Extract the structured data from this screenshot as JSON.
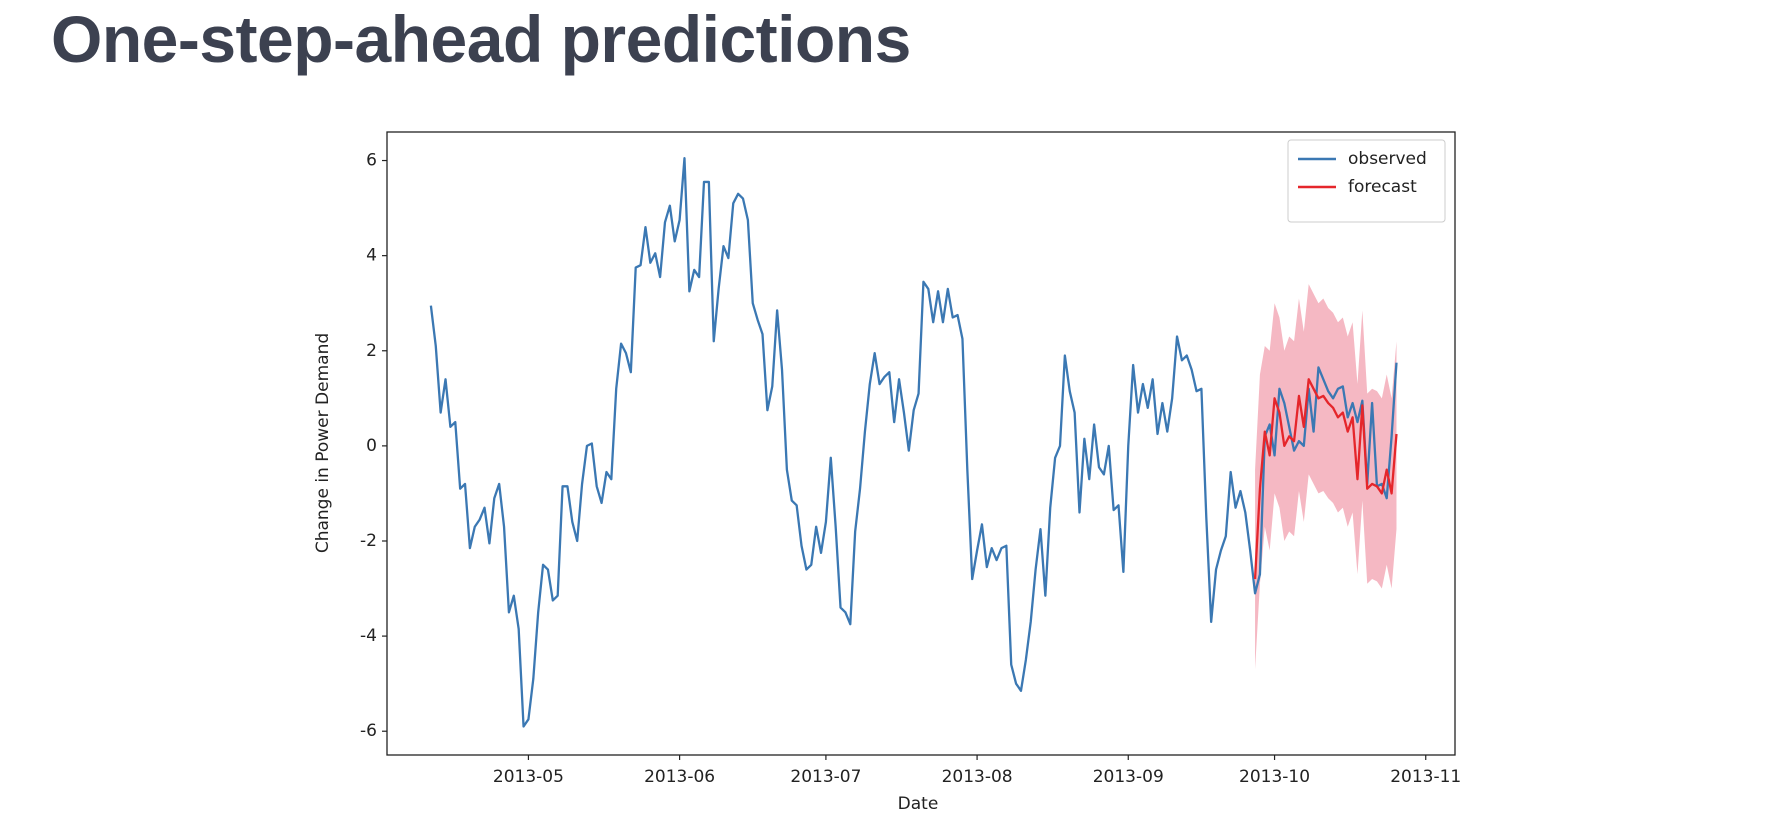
{
  "header": {
    "title": "One-step-ahead predictions"
  },
  "chart_data": {
    "type": "line",
    "xlabel": "Date",
    "ylabel": "Change in Power Demand",
    "xlim": [
      "2013-04-02",
      "2013-11-07"
    ],
    "xticks": [
      "2013-05",
      "2013-06",
      "2013-07",
      "2013-08",
      "2013-09",
      "2013-10",
      "2013-11"
    ],
    "ylim": [
      -6.5,
      6.6
    ],
    "yticks": [
      -6,
      -4,
      -2,
      0,
      2,
      4,
      6
    ],
    "grid": false,
    "legend": "upper right",
    "series": [
      {
        "name": "observed",
        "color": "#3b78b3",
        "x": [
          "2013-04-11",
          "2013-04-12",
          "2013-04-13",
          "2013-04-14",
          "2013-04-15",
          "2013-04-16",
          "2013-04-17",
          "2013-04-18",
          "2013-04-19",
          "2013-04-20",
          "2013-04-21",
          "2013-04-22",
          "2013-04-23",
          "2013-04-24",
          "2013-04-25",
          "2013-04-26",
          "2013-04-27",
          "2013-04-28",
          "2013-04-29",
          "2013-04-30",
          "2013-05-01",
          "2013-05-02",
          "2013-05-03",
          "2013-05-04",
          "2013-05-05",
          "2013-05-06",
          "2013-05-07",
          "2013-05-08",
          "2013-05-09",
          "2013-05-10",
          "2013-05-11",
          "2013-05-12",
          "2013-05-13",
          "2013-05-14",
          "2013-05-15",
          "2013-05-16",
          "2013-05-17",
          "2013-05-18",
          "2013-05-19",
          "2013-05-20",
          "2013-05-21",
          "2013-05-22",
          "2013-05-23",
          "2013-05-24",
          "2013-05-25",
          "2013-05-26",
          "2013-05-27",
          "2013-05-28",
          "2013-05-29",
          "2013-05-30",
          "2013-05-31",
          "2013-06-01",
          "2013-06-02",
          "2013-06-03",
          "2013-06-04",
          "2013-06-05",
          "2013-06-06",
          "2013-06-07",
          "2013-06-08",
          "2013-06-09",
          "2013-06-10",
          "2013-06-11",
          "2013-06-12",
          "2013-06-13",
          "2013-06-14",
          "2013-06-15",
          "2013-06-16",
          "2013-06-17",
          "2013-06-18",
          "2013-06-19",
          "2013-06-20",
          "2013-06-21",
          "2013-06-22",
          "2013-06-23",
          "2013-06-24",
          "2013-06-25",
          "2013-06-26",
          "2013-06-27",
          "2013-06-28",
          "2013-06-29",
          "2013-06-30",
          "2013-07-01",
          "2013-07-02",
          "2013-07-03",
          "2013-07-04",
          "2013-07-05",
          "2013-07-06",
          "2013-07-07",
          "2013-07-08",
          "2013-07-09",
          "2013-07-10",
          "2013-07-11",
          "2013-07-12",
          "2013-07-13",
          "2013-07-14",
          "2013-07-15",
          "2013-07-16",
          "2013-07-17",
          "2013-07-18",
          "2013-07-19",
          "2013-07-20",
          "2013-07-21",
          "2013-07-22",
          "2013-07-23",
          "2013-07-24",
          "2013-07-25",
          "2013-07-26",
          "2013-07-27",
          "2013-07-28",
          "2013-07-29",
          "2013-07-30",
          "2013-07-31",
          "2013-08-01",
          "2013-08-02",
          "2013-08-03",
          "2013-08-04",
          "2013-08-05",
          "2013-08-06",
          "2013-08-07",
          "2013-08-08",
          "2013-08-09",
          "2013-08-10",
          "2013-08-11",
          "2013-08-12",
          "2013-08-13",
          "2013-08-14",
          "2013-08-15",
          "2013-08-16",
          "2013-08-17",
          "2013-08-18",
          "2013-08-19",
          "2013-08-20",
          "2013-08-21",
          "2013-08-22",
          "2013-08-23",
          "2013-08-24",
          "2013-08-25",
          "2013-08-26",
          "2013-08-27",
          "2013-08-28",
          "2013-08-29",
          "2013-08-30",
          "2013-08-31",
          "2013-09-01",
          "2013-09-02",
          "2013-09-03",
          "2013-09-04",
          "2013-09-05",
          "2013-09-06",
          "2013-09-07",
          "2013-09-08",
          "2013-09-09",
          "2013-09-10",
          "2013-09-11",
          "2013-09-12",
          "2013-09-13",
          "2013-09-14",
          "2013-09-15",
          "2013-09-16",
          "2013-09-17",
          "2013-09-18",
          "2013-09-19",
          "2013-09-20",
          "2013-09-21",
          "2013-09-22",
          "2013-09-23",
          "2013-09-24",
          "2013-09-25",
          "2013-09-26",
          "2013-09-27",
          "2013-09-28",
          "2013-09-29",
          "2013-09-30",
          "2013-10-01",
          "2013-10-02",
          "2013-10-03",
          "2013-10-04",
          "2013-10-05",
          "2013-10-06",
          "2013-10-07",
          "2013-10-08",
          "2013-10-09",
          "2013-10-10",
          "2013-10-11",
          "2013-10-12",
          "2013-10-13",
          "2013-10-14",
          "2013-10-15",
          "2013-10-16",
          "2013-10-17",
          "2013-10-18",
          "2013-10-19",
          "2013-10-20",
          "2013-10-21",
          "2013-10-22",
          "2013-10-23",
          "2013-10-24",
          "2013-10-25",
          "2013-10-26"
        ],
        "values": [
          2.95,
          2.1,
          0.7,
          1.4,
          0.4,
          0.5,
          -0.9,
          -0.8,
          -2.15,
          -1.7,
          -1.55,
          -1.3,
          -2.05,
          -1.1,
          -0.8,
          -1.7,
          -3.5,
          -3.15,
          -3.85,
          -5.9,
          -5.75,
          -4.9,
          -3.5,
          -2.5,
          -2.6,
          -3.25,
          -3.15,
          -0.85,
          -0.85,
          -1.6,
          -2.0,
          -0.8,
          0.0,
          0.05,
          -0.85,
          -1.2,
          -0.55,
          -0.7,
          1.2,
          2.15,
          1.95,
          1.55,
          3.75,
          3.8,
          4.6,
          3.85,
          4.05,
          3.55,
          4.7,
          5.05,
          4.3,
          4.75,
          6.05,
          3.25,
          3.7,
          3.55,
          5.55,
          5.55,
          2.2,
          3.3,
          4.2,
          3.95,
          5.1,
          5.3,
          5.2,
          4.75,
          3.0,
          2.65,
          2.35,
          0.75,
          1.25,
          2.85,
          1.6,
          -0.5,
          -1.15,
          -1.25,
          -2.1,
          -2.6,
          -2.5,
          -1.7,
          -2.25,
          -1.6,
          -0.25,
          -1.7,
          -3.4,
          -3.5,
          -3.75,
          -1.8,
          -0.9,
          0.3,
          1.3,
          1.95,
          1.3,
          1.45,
          1.55,
          0.5,
          1.4,
          0.7,
          -0.1,
          0.75,
          1.1,
          3.45,
          3.3,
          2.6,
          3.25,
          2.6,
          3.3,
          2.7,
          2.75,
          2.25,
          -0.5,
          -2.8,
          -2.2,
          -1.65,
          -2.55,
          -2.15,
          -2.4,
          -2.15,
          -2.1,
          -4.6,
          -5.0,
          -5.15,
          -4.5,
          -3.7,
          -2.6,
          -1.75,
          -3.15,
          -1.3,
          -0.25,
          0.0,
          1.9,
          1.15,
          0.7,
          -1.4,
          0.15,
          -0.7,
          0.45,
          -0.45,
          -0.6,
          0.0,
          -1.35,
          -1.25,
          -2.65,
          0.0,
          1.7,
          0.7,
          1.3,
          0.8,
          1.4,
          0.25,
          0.9,
          0.3,
          1.0,
          2.3,
          1.8,
          1.9,
          1.6,
          1.15,
          1.2,
          -1.5,
          -3.7,
          -2.6,
          -2.2,
          -1.9,
          -0.55,
          -1.3,
          -0.95,
          -1.4,
          -2.2,
          -3.1,
          -2.7,
          0.2,
          0.45,
          -0.2,
          1.2,
          0.9,
          0.4,
          -0.1,
          0.1,
          0.0,
          1.2,
          0.3,
          1.65,
          1.4,
          1.15,
          1.0,
          1.2,
          1.25,
          0.6,
          0.9,
          0.5,
          0.95,
          -0.8,
          0.9,
          -0.85,
          -0.8,
          -1.1,
          0.2,
          1.75
        ]
      },
      {
        "name": "forecast",
        "color": "#e5262b",
        "x": [
          "2013-09-27",
          "2013-09-28",
          "2013-09-29",
          "2013-09-30",
          "2013-10-01",
          "2013-10-02",
          "2013-10-03",
          "2013-10-04",
          "2013-10-05",
          "2013-10-06",
          "2013-10-07",
          "2013-10-08",
          "2013-10-09",
          "2013-10-10",
          "2013-10-11",
          "2013-10-12",
          "2013-10-13",
          "2013-10-14",
          "2013-10-15",
          "2013-10-16",
          "2013-10-17",
          "2013-10-18",
          "2013-10-19",
          "2013-10-20",
          "2013-10-21",
          "2013-10-22",
          "2013-10-23",
          "2013-10-24",
          "2013-10-25",
          "2013-10-26"
        ],
        "values": [
          -2.8,
          -0.9,
          0.3,
          -0.2,
          1.0,
          0.7,
          0.0,
          0.2,
          0.1,
          1.05,
          0.4,
          1.4,
          1.2,
          1.0,
          1.05,
          0.9,
          0.8,
          0.6,
          0.7,
          0.3,
          0.6,
          -0.7,
          0.85,
          -0.9,
          -0.8,
          -0.85,
          -1.0,
          -0.5,
          -1.0,
          0.25
        ]
      }
    ],
    "interval": {
      "color": "#f5b8c3",
      "x": [
        "2013-09-27",
        "2013-09-28",
        "2013-09-29",
        "2013-09-30",
        "2013-10-01",
        "2013-10-02",
        "2013-10-03",
        "2013-10-04",
        "2013-10-05",
        "2013-10-06",
        "2013-10-07",
        "2013-10-08",
        "2013-10-09",
        "2013-10-10",
        "2013-10-11",
        "2013-10-12",
        "2013-10-13",
        "2013-10-14",
        "2013-10-15",
        "2013-10-16",
        "2013-10-17",
        "2013-10-18",
        "2013-10-19",
        "2013-10-20",
        "2013-10-21",
        "2013-10-22",
        "2013-10-23",
        "2013-10-24",
        "2013-10-25",
        "2013-10-26"
      ],
      "lower": [
        -4.7,
        -2.9,
        -1.7,
        -2.2,
        -1.0,
        -1.3,
        -2.0,
        -1.8,
        -1.9,
        -0.95,
        -1.6,
        -0.6,
        -0.8,
        -1.0,
        -0.95,
        -1.1,
        -1.2,
        -1.4,
        -1.3,
        -1.7,
        -1.4,
        -2.7,
        -1.15,
        -2.9,
        -2.8,
        -2.85,
        -3.0,
        -2.5,
        -3.0,
        -1.75
      ],
      "upper": [
        -0.5,
        1.5,
        2.1,
        2.0,
        3.0,
        2.7,
        2.0,
        2.3,
        2.2,
        3.1,
        2.4,
        3.4,
        3.2,
        3.0,
        3.1,
        2.9,
        2.8,
        2.6,
        2.7,
        2.3,
        2.6,
        1.3,
        2.85,
        1.1,
        1.2,
        1.15,
        1.0,
        1.5,
        1.0,
        2.2
      ]
    }
  }
}
